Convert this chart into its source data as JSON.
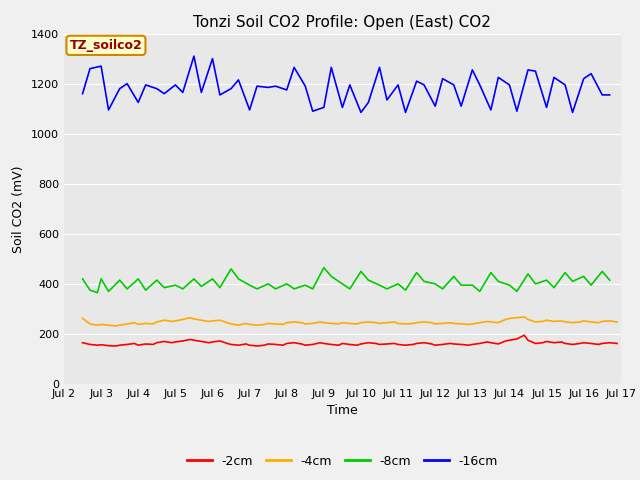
{
  "title": "Tonzi Soil CO2 Profile: Open (East) CO2",
  "ylabel": "Soil CO2 (mV)",
  "xlabel": "Time",
  "xlim": [
    0,
    15
  ],
  "ylim": [
    0,
    1400
  ],
  "yticks": [
    0,
    200,
    400,
    600,
    800,
    1000,
    1200,
    1400
  ],
  "xtick_labels": [
    "Jul 2",
    "Jul 3",
    "Jul 4",
    "Jul 5",
    "Jul 6",
    "Jul 7",
    "Jul 8",
    "Jul 9",
    "Jul 10",
    "Jul 11",
    "Jul 12",
    "Jul 13",
    "Jul 14",
    "Jul 15",
    "Jul 16",
    "Jul 17"
  ],
  "xtick_positions": [
    0,
    1,
    2,
    3,
    4,
    5,
    6,
    7,
    8,
    9,
    10,
    11,
    12,
    13,
    14,
    15
  ],
  "series": {
    "neg2cm": {
      "label": "-2cm",
      "color": "#ff0000",
      "x": [
        0.5,
        0.7,
        0.9,
        1.0,
        1.2,
        1.4,
        1.5,
        1.7,
        1.9,
        2.0,
        2.2,
        2.4,
        2.5,
        2.7,
        2.9,
        3.0,
        3.2,
        3.4,
        3.5,
        3.7,
        3.9,
        4.0,
        4.2,
        4.4,
        4.5,
        4.7,
        4.9,
        5.0,
        5.2,
        5.4,
        5.5,
        5.7,
        5.9,
        6.0,
        6.2,
        6.4,
        6.5,
        6.7,
        6.9,
        7.0,
        7.2,
        7.4,
        7.5,
        7.7,
        7.9,
        8.0,
        8.2,
        8.4,
        8.5,
        8.7,
        8.9,
        9.0,
        9.2,
        9.4,
        9.5,
        9.7,
        9.9,
        10.0,
        10.2,
        10.4,
        10.5,
        10.7,
        10.9,
        11.0,
        11.2,
        11.4,
        11.5,
        11.7,
        11.9,
        12.0,
        12.2,
        12.4,
        12.5,
        12.7,
        12.9,
        13.0,
        13.2,
        13.4,
        13.5,
        13.7,
        13.9,
        14.0,
        14.2,
        14.4,
        14.5,
        14.7,
        14.9
      ],
      "y": [
        165,
        158,
        155,
        157,
        153,
        152,
        155,
        158,
        162,
        155,
        160,
        158,
        165,
        170,
        165,
        168,
        172,
        178,
        175,
        170,
        165,
        168,
        172,
        162,
        158,
        155,
        160,
        155,
        152,
        155,
        160,
        158,
        155,
        162,
        165,
        160,
        155,
        158,
        165,
        162,
        158,
        155,
        162,
        158,
        155,
        160,
        165,
        162,
        158,
        160,
        162,
        158,
        155,
        158,
        162,
        165,
        160,
        155,
        158,
        162,
        160,
        158,
        155,
        158,
        162,
        168,
        165,
        160,
        172,
        175,
        180,
        195,
        175,
        162,
        165,
        170,
        165,
        168,
        162,
        158,
        162,
        165,
        162,
        158,
        162,
        165,
        162
      ]
    },
    "neg4cm": {
      "label": "-4cm",
      "color": "#ffaa00",
      "x": [
        0.5,
        0.7,
        0.9,
        1.0,
        1.2,
        1.4,
        1.5,
        1.7,
        1.9,
        2.0,
        2.2,
        2.4,
        2.5,
        2.7,
        2.9,
        3.0,
        3.2,
        3.4,
        3.5,
        3.7,
        3.9,
        4.0,
        4.2,
        4.4,
        4.5,
        4.7,
        4.9,
        5.0,
        5.2,
        5.4,
        5.5,
        5.7,
        5.9,
        6.0,
        6.2,
        6.4,
        6.5,
        6.7,
        6.9,
        7.0,
        7.2,
        7.4,
        7.5,
        7.7,
        7.9,
        8.0,
        8.2,
        8.4,
        8.5,
        8.7,
        8.9,
        9.0,
        9.2,
        9.4,
        9.5,
        9.7,
        9.9,
        10.0,
        10.2,
        10.4,
        10.5,
        10.7,
        10.9,
        11.0,
        11.2,
        11.4,
        11.5,
        11.7,
        11.9,
        12.0,
        12.2,
        12.4,
        12.5,
        12.7,
        12.9,
        13.0,
        13.2,
        13.4,
        13.5,
        13.7,
        13.9,
        14.0,
        14.2,
        14.4,
        14.5,
        14.7,
        14.9
      ],
      "y": [
        262,
        240,
        235,
        238,
        235,
        232,
        235,
        240,
        245,
        238,
        242,
        240,
        248,
        255,
        250,
        252,
        258,
        265,
        260,
        255,
        250,
        252,
        255,
        245,
        240,
        235,
        242,
        238,
        235,
        238,
        242,
        240,
        238,
        245,
        248,
        245,
        240,
        242,
        248,
        245,
        242,
        240,
        245,
        242,
        240,
        245,
        248,
        245,
        242,
        245,
        248,
        242,
        240,
        242,
        245,
        248,
        245,
        240,
        242,
        245,
        242,
        240,
        238,
        240,
        245,
        250,
        248,
        245,
        258,
        262,
        265,
        268,
        258,
        248,
        250,
        255,
        250,
        252,
        248,
        245,
        248,
        252,
        248,
        245,
        250,
        252,
        248
      ]
    },
    "neg8cm": {
      "label": "-8cm",
      "color": "#00cc00",
      "x": [
        0.5,
        0.7,
        0.9,
        1.0,
        1.2,
        1.5,
        1.7,
        2.0,
        2.2,
        2.5,
        2.7,
        3.0,
        3.2,
        3.5,
        3.7,
        4.0,
        4.2,
        4.5,
        4.7,
        5.0,
        5.2,
        5.5,
        5.7,
        6.0,
        6.2,
        6.5,
        6.7,
        7.0,
        7.2,
        7.5,
        7.7,
        8.0,
        8.2,
        8.5,
        8.7,
        9.0,
        9.2,
        9.5,
        9.7,
        10.0,
        10.2,
        10.5,
        10.7,
        11.0,
        11.2,
        11.5,
        11.7,
        12.0,
        12.2,
        12.5,
        12.7,
        13.0,
        13.2,
        13.5,
        13.7,
        14.0,
        14.2,
        14.5,
        14.7
      ],
      "y": [
        420,
        375,
        365,
        420,
        370,
        415,
        380,
        420,
        375,
        415,
        385,
        395,
        380,
        420,
        390,
        420,
        385,
        460,
        420,
        395,
        380,
        400,
        380,
        400,
        380,
        395,
        380,
        465,
        430,
        400,
        380,
        450,
        415,
        395,
        380,
        400,
        375,
        445,
        410,
        400,
        380,
        430,
        395,
        395,
        370,
        445,
        410,
        395,
        370,
        440,
        400,
        415,
        385,
        445,
        410,
        430,
        395,
        450,
        415
      ]
    },
    "neg16cm": {
      "label": "-16cm",
      "color": "#0000ff",
      "x": [
        0.5,
        0.7,
        1.0,
        1.2,
        1.5,
        1.7,
        2.0,
        2.2,
        2.5,
        2.7,
        3.0,
        3.2,
        3.5,
        3.7,
        4.0,
        4.2,
        4.5,
        4.7,
        5.0,
        5.2,
        5.5,
        5.7,
        6.0,
        6.2,
        6.5,
        6.7,
        7.0,
        7.2,
        7.5,
        7.7,
        8.0,
        8.2,
        8.5,
        8.7,
        9.0,
        9.2,
        9.5,
        9.7,
        10.0,
        10.2,
        10.5,
        10.7,
        11.0,
        11.2,
        11.5,
        11.7,
        12.0,
        12.2,
        12.5,
        12.7,
        13.0,
        13.2,
        13.5,
        13.7,
        14.0,
        14.2,
        14.5,
        14.7
      ],
      "y": [
        1160,
        1260,
        1270,
        1095,
        1180,
        1200,
        1125,
        1195,
        1180,
        1160,
        1195,
        1165,
        1310,
        1165,
        1300,
        1155,
        1180,
        1215,
        1095,
        1190,
        1185,
        1190,
        1175,
        1265,
        1190,
        1090,
        1105,
        1265,
        1105,
        1195,
        1085,
        1125,
        1265,
        1135,
        1195,
        1085,
        1210,
        1195,
        1110,
        1220,
        1195,
        1110,
        1255,
        1195,
        1095,
        1225,
        1195,
        1090,
        1255,
        1250,
        1105,
        1225,
        1195,
        1085,
        1220,
        1240,
        1155,
        1155
      ]
    }
  },
  "fig_bg_color": "#f0f0f0",
  "plot_bg_color": "#e8e8e8",
  "grid_color": "#ffffff",
  "title_fontsize": 11,
  "axis_label_fontsize": 9,
  "tick_fontsize": 8,
  "legend_fontsize": 9,
  "linewidth": 1.2,
  "box_label": "TZ_soilco2",
  "box_bg": "#ffffcc",
  "box_edge": "#cc8800",
  "box_text_color": "#990000"
}
